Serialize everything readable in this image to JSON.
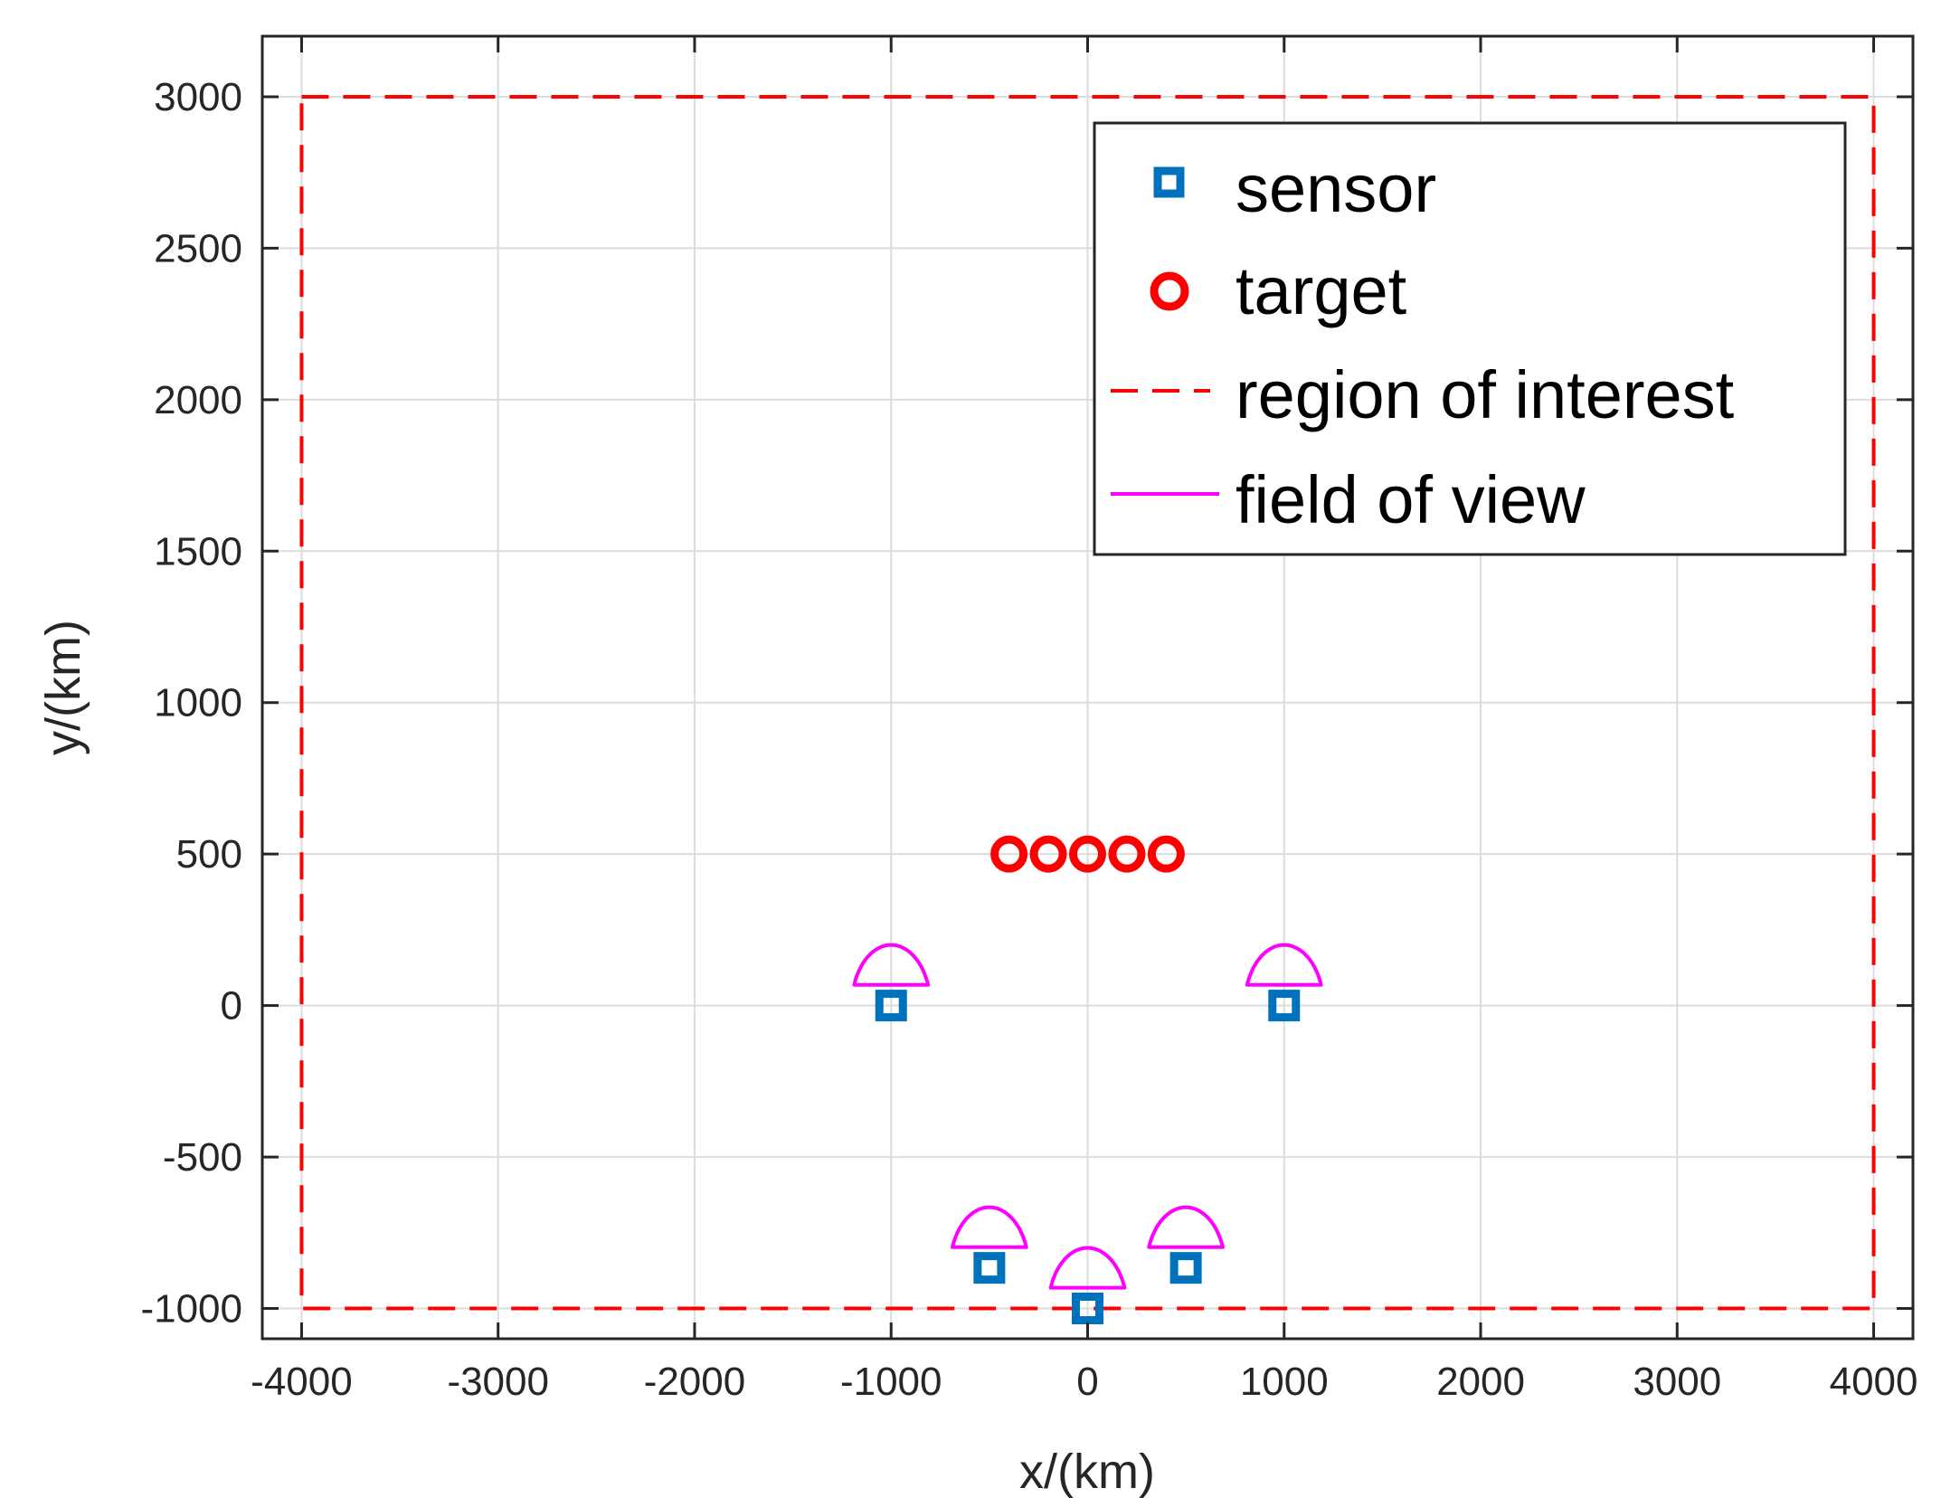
{
  "chart_data": {
    "type": "scatter",
    "title": "",
    "xlabel": "x/(km)",
    "ylabel": "y/(km)",
    "xlim": [
      -4200,
      4200
    ],
    "ylim": [
      -1100,
      3200
    ],
    "xticks": [
      -4000,
      -3000,
      -2000,
      -1000,
      0,
      1000,
      2000,
      3000,
      4000
    ],
    "yticks": [
      -1000,
      -500,
      0,
      500,
      1000,
      1500,
      2000,
      2500,
      3000
    ],
    "xtick_labels": [
      "-4000",
      "-3000",
      "-2000",
      "-1000",
      "0",
      "1000",
      "2000",
      "3000",
      "4000"
    ],
    "ytick_labels": [
      "-1000",
      "-500",
      "0",
      "500",
      "1000",
      "1500",
      "2000",
      "2500",
      "3000"
    ],
    "grid": true,
    "legend_position": "top-right",
    "series": [
      {
        "name": "sensor",
        "marker": "square",
        "color": "#0072BD",
        "points": [
          [
            -1000,
            0
          ],
          [
            1000,
            0
          ],
          [
            -500,
            -866
          ],
          [
            0,
            -1000
          ],
          [
            500,
            -866
          ]
        ]
      },
      {
        "name": "target",
        "marker": "circle",
        "color": "#FF0000",
        "points": [
          [
            -400,
            500
          ],
          [
            -200,
            500
          ],
          [
            0,
            500
          ],
          [
            200,
            500
          ],
          [
            400,
            500
          ]
        ]
      },
      {
        "name": "region of interest",
        "line": "dashed",
        "color": "#FF0000",
        "rect": {
          "xmin": -4000,
          "xmax": 4000,
          "ymin": -1000,
          "ymax": 3000
        }
      },
      {
        "name": "field of view",
        "line": "solid",
        "color": "#FF00FF",
        "radius": 200,
        "half_angle_deg": 70,
        "centers": [
          [
            -1000,
            0
          ],
          [
            1000,
            0
          ],
          [
            -500,
            -866
          ],
          [
            0,
            -1000
          ],
          [
            500,
            -866
          ]
        ]
      }
    ]
  }
}
